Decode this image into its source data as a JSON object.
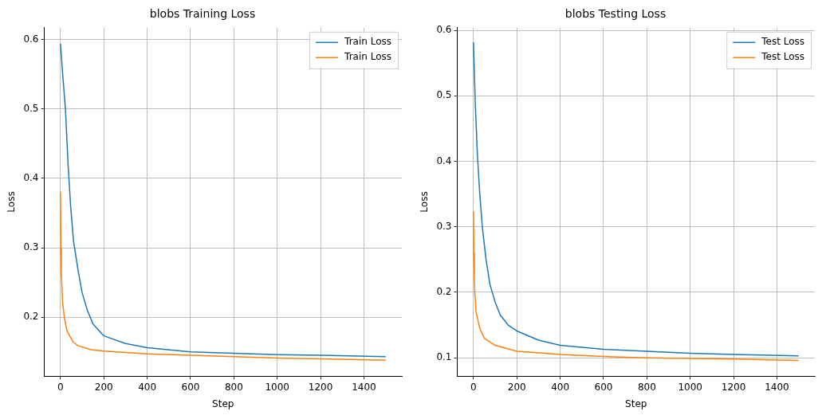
{
  "chart_data": [
    {
      "type": "line",
      "title": "blobs Training Loss",
      "xlabel": "Step",
      "ylabel": "Loss",
      "xlim": [
        -75,
        1575
      ],
      "ylim": [
        0.115,
        0.617
      ],
      "xticks": [
        0,
        200,
        400,
        600,
        800,
        1000,
        1200,
        1400
      ],
      "yticks": [
        0.2,
        0.3,
        0.4,
        0.5,
        0.6
      ],
      "grid": true,
      "legend": "top right",
      "marker": "none",
      "line_style": "solid",
      "series": [
        {
          "name": "Train Loss",
          "color": "#1f77b4",
          "x": [
            0,
            10,
            23,
            35,
            47,
            60,
            82,
            100,
            124,
            150,
            200,
            300,
            400,
            600,
            800,
            1000,
            1200,
            1500
          ],
          "values": [
            0.594,
            0.55,
            0.499,
            0.42,
            0.359,
            0.31,
            0.266,
            0.235,
            0.21,
            0.19,
            0.173,
            0.162,
            0.156,
            0.15,
            0.148,
            0.146,
            0.145,
            0.143
          ]
        },
        {
          "name": "Train Loss",
          "color": "#ff7f0e",
          "x": [
            0,
            2,
            4,
            6,
            10,
            18,
            30,
            59,
            80,
            141,
            200,
            400,
            600,
            800,
            1000,
            1200,
            1500
          ],
          "values": [
            0.381,
            0.3,
            0.26,
            0.248,
            0.22,
            0.199,
            0.18,
            0.164,
            0.159,
            0.153,
            0.151,
            0.147,
            0.145,
            0.143,
            0.141,
            0.14,
            0.138
          ]
        }
      ]
    },
    {
      "type": "line",
      "title": "blobs Testing Loss",
      "xlabel": "Step",
      "ylabel": "Loss",
      "xlim": [
        -75,
        1575
      ],
      "ylim": [
        0.072,
        0.604
      ],
      "xticks": [
        0,
        200,
        400,
        600,
        800,
        1000,
        1200,
        1400
      ],
      "yticks": [
        0.1,
        0.2,
        0.3,
        0.4,
        0.5,
        0.6
      ],
      "grid": true,
      "legend": "top right",
      "marker": "none",
      "line_style": "solid",
      "series": [
        {
          "name": "Test Loss",
          "color": "#1f77b4",
          "x": [
            0,
            8,
            18,
            29,
            41,
            58,
            76,
            100,
            124,
            160,
            200,
            300,
            400,
            600,
            800,
            1000,
            1200,
            1500
          ],
          "values": [
            0.582,
            0.49,
            0.41,
            0.35,
            0.299,
            0.25,
            0.212,
            0.185,
            0.165,
            0.15,
            0.141,
            0.127,
            0.119,
            0.113,
            0.11,
            0.107,
            0.105,
            0.103
          ]
        },
        {
          "name": "Test Loss",
          "color": "#ff7f0e",
          "x": [
            0,
            2,
            4,
            6,
            12,
            29,
            50,
            100,
            200,
            400,
            600,
            800,
            1000,
            1200,
            1500
          ],
          "values": [
            0.324,
            0.26,
            0.22,
            0.201,
            0.17,
            0.145,
            0.13,
            0.119,
            0.11,
            0.105,
            0.102,
            0.1,
            0.099,
            0.098,
            0.096
          ]
        }
      ]
    }
  ]
}
